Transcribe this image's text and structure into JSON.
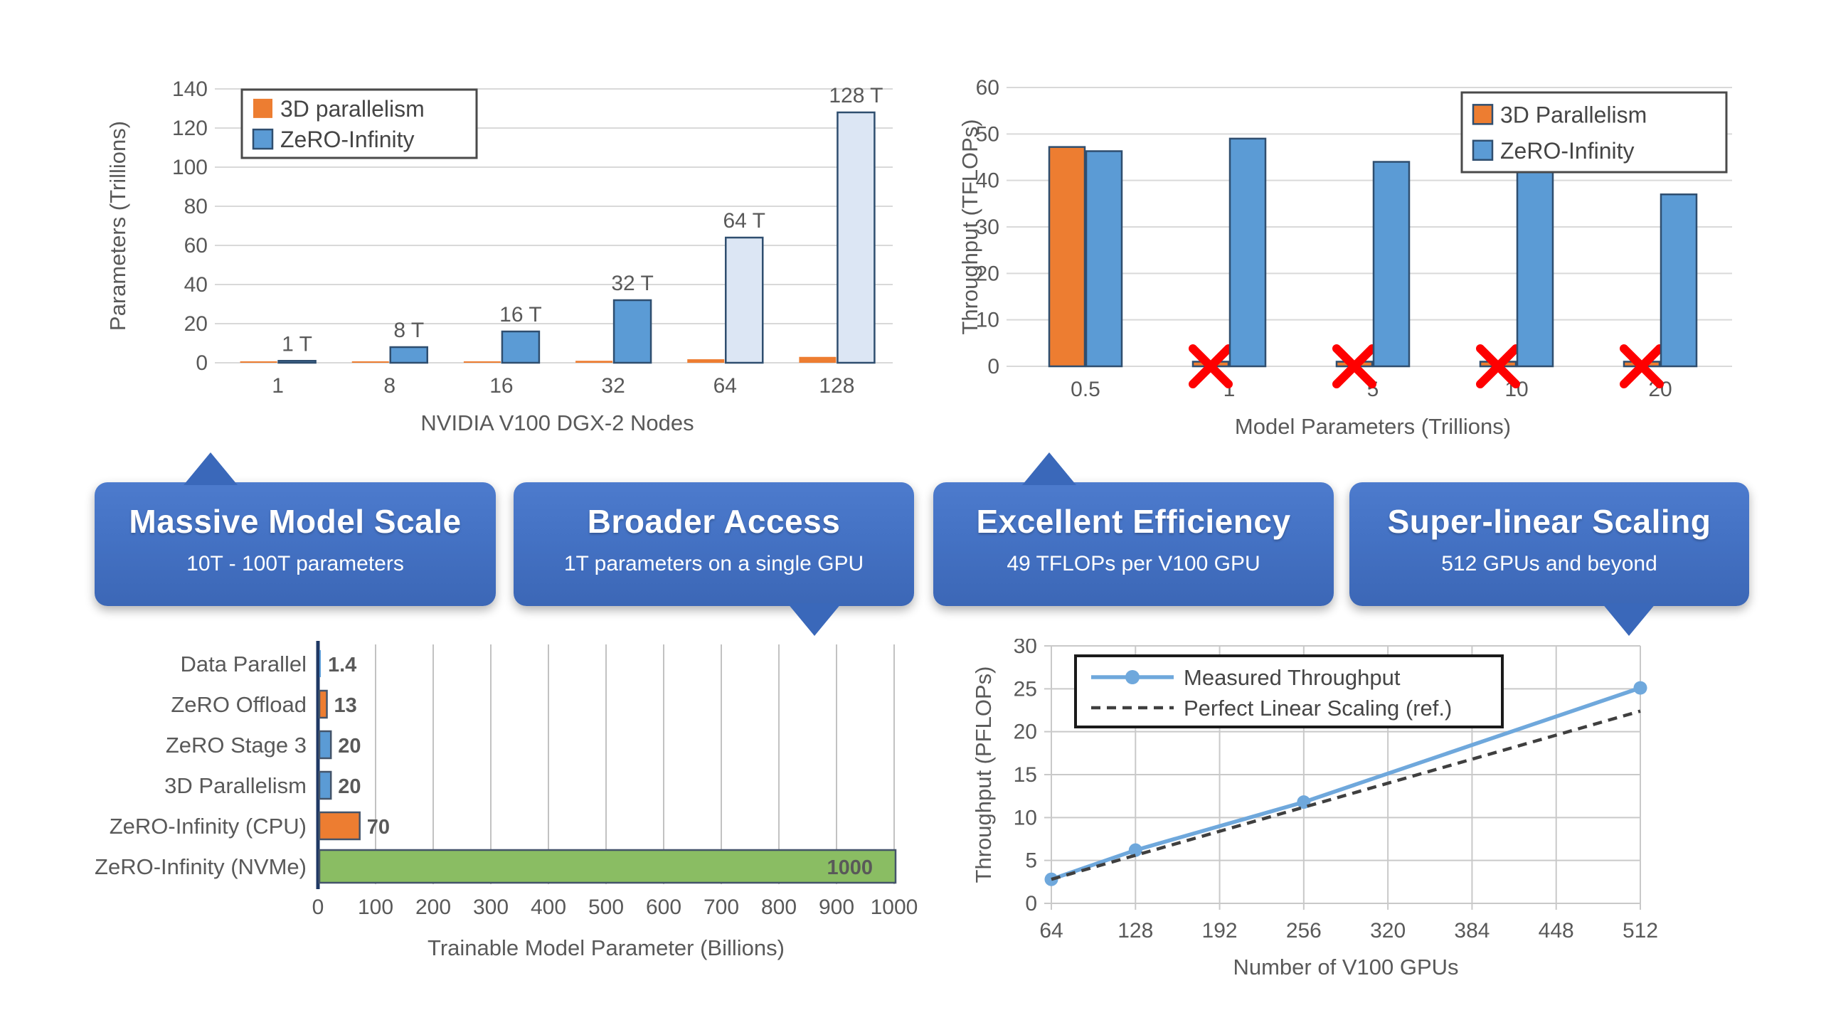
{
  "page": {
    "background": "#FFFFFF"
  },
  "colors": {
    "orange": "#ED7D31",
    "blue": "#5B9BD5",
    "light_blue": "#DCE6F4",
    "green": "#8ABD63",
    "bar_stroke": "#2F4E6F",
    "navy_axis": "#1F3864",
    "axis_text": "#595959",
    "grid": "#D9D9D9",
    "red_x": "#FE0000",
    "callout_blue": "#4472C4",
    "measured_line": "#6FA8DC",
    "reference_line": "#3F3F3F"
  },
  "callouts": [
    {
      "title": "Massive Model Scale",
      "subtitle": "10T - 100T parameters",
      "pointer": "up"
    },
    {
      "title": "Broader Access",
      "subtitle": "1T parameters on a single GPU",
      "pointer": "down"
    },
    {
      "title": "Excellent Efficiency",
      "subtitle": "49 TFLOPs per V100 GPU",
      "pointer": "up"
    },
    {
      "title": "Super-linear Scaling",
      "subtitle": "512 GPUs and beyond",
      "pointer": "down"
    }
  ],
  "chart_data": [
    {
      "id": "max-model-scale",
      "type": "bar",
      "title": "",
      "xlabel": "NVIDIA V100 DGX-2 Nodes",
      "ylabel": "Parameters (Trillions)",
      "ylim": [
        0,
        140
      ],
      "ytick": 20,
      "grid": true,
      "legend_position": "top-left",
      "categories": [
        "1",
        "8",
        "16",
        "32",
        "64",
        "128"
      ],
      "series": [
        {
          "name": "3D parallelism",
          "color": "#ED7D31",
          "values": [
            0.5,
            0.5,
            0.7,
            1,
            1.8,
            3
          ]
        },
        {
          "name": "ZeRO-Infinity",
          "color": "#5B9BD5",
          "stroke": "#2F4E6F",
          "values": [
            1,
            8,
            16,
            32,
            64,
            128
          ],
          "bar_colors": [
            "#5B9BD5",
            "#5B9BD5",
            "#5B9BD5",
            "#5B9BD5",
            "#DCE6F4",
            "#DCE6F4"
          ],
          "bar_labels": [
            "1 T",
            "8 T",
            "16 T",
            "32 T",
            "64 T",
            "128 T"
          ]
        }
      ]
    },
    {
      "id": "throughput-efficiency",
      "type": "bar",
      "title": "",
      "xlabel": "Model Parameters (Trillions)",
      "ylabel": "Throughput (TFLOPs)",
      "ylim": [
        0,
        60
      ],
      "ytick": 10,
      "grid": true,
      "legend_position": "top-right",
      "failed_marker_color": "#FE0000",
      "categories": [
        "0.5",
        "1",
        "5",
        "10",
        "20"
      ],
      "series": [
        {
          "name": "3D Parallelism",
          "color": "#ED7D31",
          "stroke": "#2F4E6F",
          "values": [
            47.2,
            1,
            1,
            1,
            1
          ],
          "failed": [
            false,
            true,
            true,
            true,
            true
          ]
        },
        {
          "name": "ZeRO-Infinity",
          "color": "#5B9BD5",
          "stroke": "#2F4E6F",
          "values": [
            46.3,
            49,
            44,
            42.5,
            37
          ]
        }
      ]
    },
    {
      "id": "max-model-size-single-gpu",
      "type": "bar-horizontal",
      "title": "",
      "xlabel": "Trainable Model Parameter (Billions)",
      "xlim": [
        0,
        1000
      ],
      "xtick": 100,
      "grid": true,
      "categories": [
        "Data Parallel",
        "ZeRO Offload",
        "ZeRO Stage 3",
        "3D Parallelism",
        "ZeRO-Infinity (CPU)",
        "ZeRO-Infinity (NVMe)"
      ],
      "values": [
        1.4,
        13,
        20,
        20,
        70,
        1000
      ],
      "value_labels": [
        "1.4",
        "13",
        "20",
        "20",
        "70",
        "1000"
      ],
      "bar_colors": [
        "#5B9BD5",
        "#ED7D31",
        "#5B9BD5",
        "#5B9BD5",
        "#ED7D31",
        "#8ABD63"
      ]
    },
    {
      "id": "superlinear-scaling",
      "type": "line",
      "title": "",
      "xlabel": "Number of V100 GPUs",
      "ylabel": "Throughput (PFLOPs)",
      "ylim": [
        0,
        30
      ],
      "ytick": 5,
      "grid": true,
      "legend_position": "top-left",
      "xlim": [
        64,
        512
      ],
      "x_ticks": [
        "64",
        "128",
        "192",
        "256",
        "320",
        "384",
        "448",
        "512"
      ],
      "series": [
        {
          "name": "Measured Throughput",
          "color": "#6FA8DC",
          "style": "solid",
          "marker": "circle",
          "points": [
            [
              64,
              2.8
            ],
            [
              128,
              6.2
            ],
            [
              256,
              11.8
            ],
            [
              512,
              25.1
            ]
          ]
        },
        {
          "name": "Perfect Linear Scaling (ref.)",
          "color": "#3F3F3F",
          "style": "dashed",
          "marker": "none",
          "points": [
            [
              64,
              2.8
            ],
            [
              512,
              22.4
            ]
          ]
        }
      ]
    }
  ]
}
